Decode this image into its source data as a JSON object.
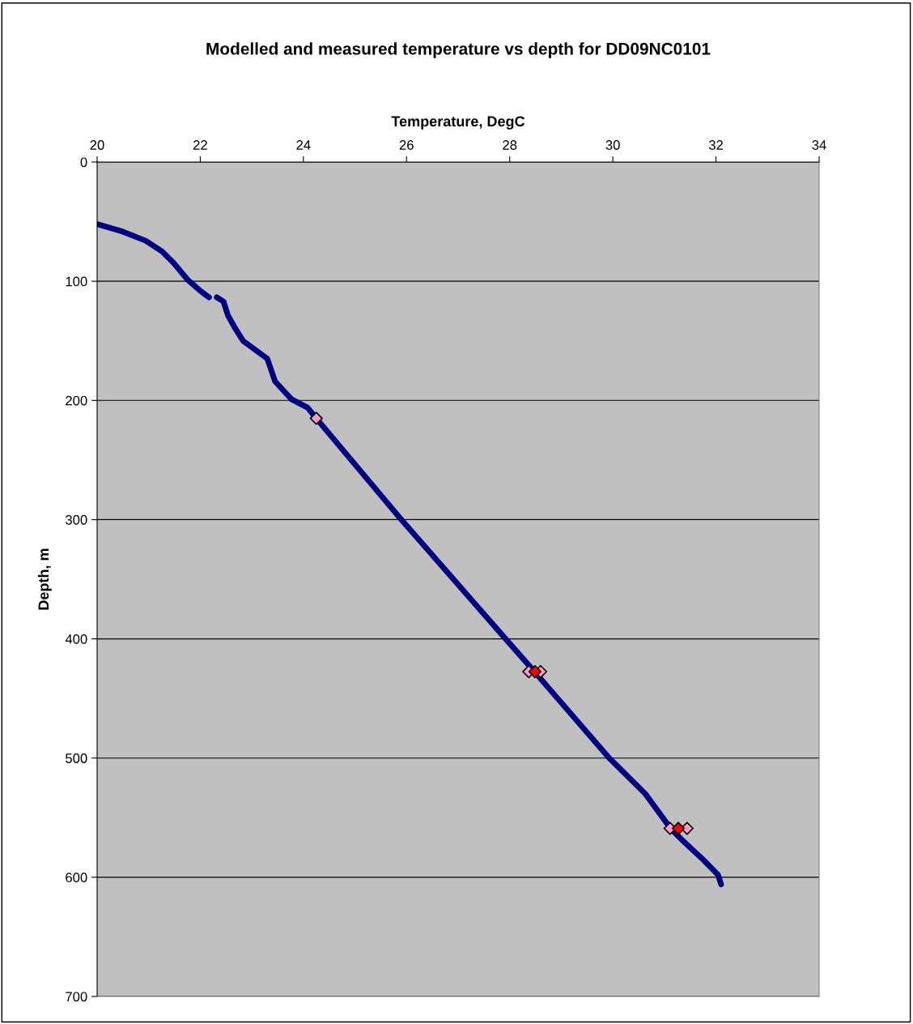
{
  "chart_data": {
    "type": "scatter",
    "title": "Modelled and measured temperature vs depth for DD09NC0101",
    "xlabel": "Temperature, DegC",
    "ylabel": "Depth, m",
    "xlim": [
      20,
      34
    ],
    "xticks": [
      20,
      22,
      24,
      26,
      28,
      30,
      32,
      34
    ],
    "ylim": [
      700,
      0
    ],
    "yticks": [
      0,
      100,
      200,
      300,
      400,
      500,
      600,
      700
    ],
    "grid": "y",
    "series": [
      {
        "type": "line",
        "color": "#000080",
        "marker": "none",
        "x": [
          20.0,
          20.47,
          20.94,
          21.26,
          21.49,
          21.76,
          22.0,
          22.17,
          null,
          22.32,
          22.45,
          22.54,
          22.67,
          22.83,
          23.3,
          23.45,
          23.77,
          24.08,
          24.25,
          25.92,
          27.9,
          28.48,
          29.93,
          30.63,
          31.12,
          31.35,
          31.77,
          32.04,
          32.1
        ],
        "values": [
          52,
          58,
          66,
          75,
          85,
          99,
          108,
          113.5,
          null,
          113.5,
          117,
          129,
          139,
          150,
          165,
          184,
          199,
          206,
          215,
          301,
          399,
          427.5,
          500,
          530,
          559,
          569,
          586,
          598,
          606
        ]
      },
      {
        "color": "#ff99cc",
        "marker": "diamond",
        "x": [
          24.25,
          28.37,
          28.6,
          31.11,
          31.44
        ],
        "values": [
          215,
          427.5,
          427.5,
          559,
          559
        ]
      },
      {
        "color": "#ff0000",
        "marker": "diamond",
        "x": [
          28.49,
          31.27
        ],
        "values": [
          427.5,
          559
        ]
      }
    ]
  }
}
